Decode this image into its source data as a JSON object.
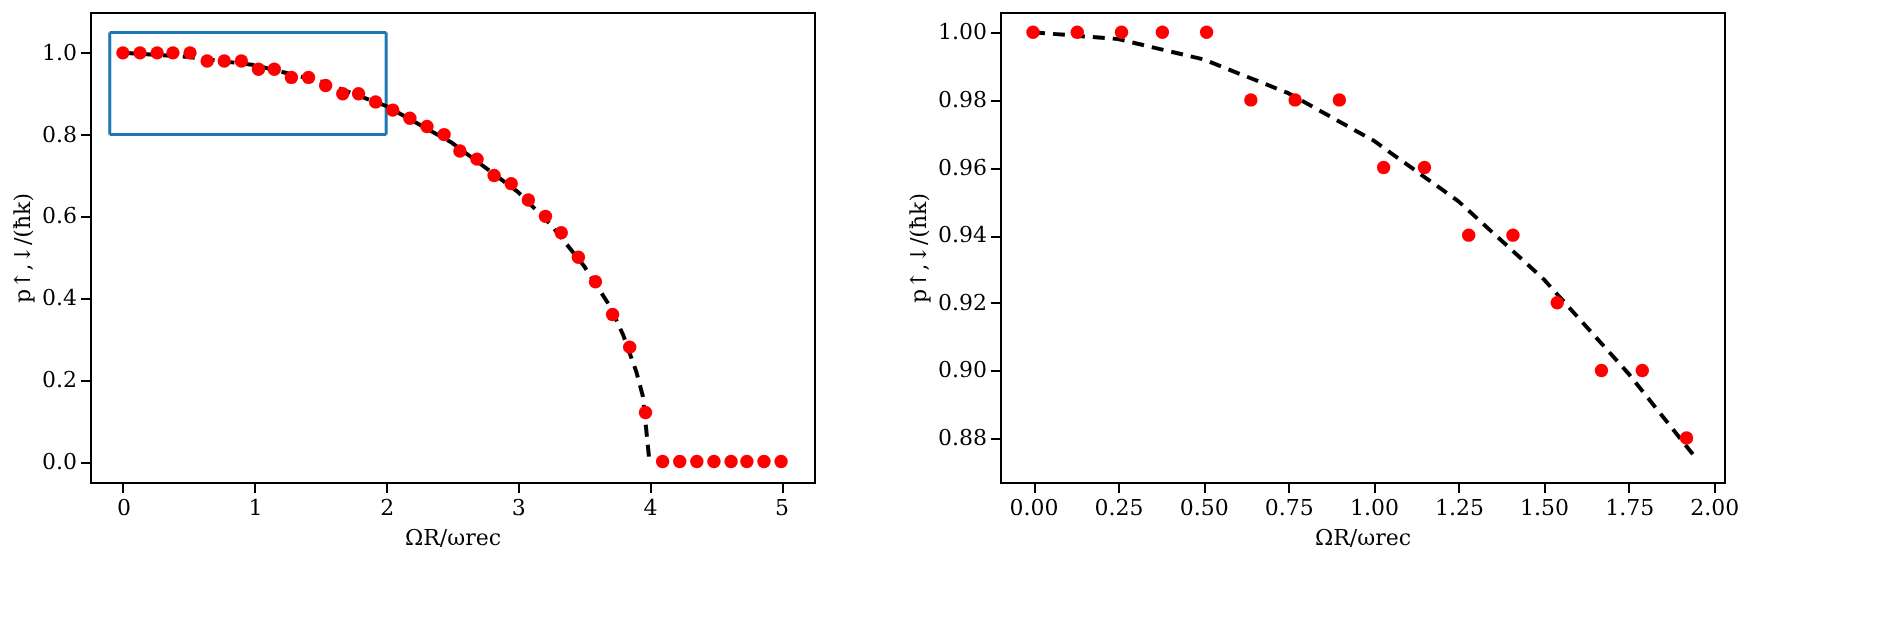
{
  "chart_data": [
    {
      "type": "scatter",
      "xlabel": "ΩR/ωrec",
      "ylabel": "p↑,↓/(ħk)",
      "grid": false,
      "xlim": [
        -0.25,
        5.25
      ],
      "ylim": [
        -0.05,
        1.1
      ],
      "xticks": [
        0,
        1,
        2,
        3,
        4,
        5
      ],
      "yticks": [
        {
          "value": 0,
          "label": "0.0"
        },
        {
          "value": 0.2,
          "label": "0.2"
        },
        {
          "value": 0.4,
          "label": "0.4"
        },
        {
          "value": 0.6,
          "label": "0.6"
        },
        {
          "value": 0.8,
          "label": "0.8"
        },
        {
          "value": 1,
          "label": "1.0"
        }
      ],
      "series": [
        {
          "type": "line",
          "color": "#1f77b4",
          "line_style": "solid",
          "marker": "none",
          "x": [
            -0.1,
            2
          ],
          "values": [
            0.8,
            0.8
          ]
        },
        {
          "type": "line",
          "color": "#1f77b4",
          "line_style": "solid",
          "marker": "none",
          "x": [
            -0.1,
            2
          ],
          "values": [
            1.05,
            1.05
          ]
        },
        {
          "type": "line",
          "color": "#1f77b4",
          "line_style": "solid",
          "marker": "none",
          "x": [
            -0.1,
            -0.1
          ],
          "values": [
            0.8,
            1.05
          ]
        },
        {
          "type": "line",
          "color": "#1f77b4",
          "line_style": "solid",
          "marker": "none",
          "x": [
            2,
            2
          ],
          "values": [
            0.8,
            1.05
          ]
        },
        {
          "type": "line",
          "color": "#000000",
          "line_style": "dashed",
          "marker": "none",
          "x": [
            0,
            0.5,
            1,
            1.5,
            2,
            2.5,
            3,
            3.25,
            3.5,
            3.7,
            3.8,
            3.9,
            3.95,
            4.0
          ],
          "values": [
            1,
            0.99,
            0.97,
            0.93,
            0.87,
            0.78,
            0.66,
            0.58,
            0.48,
            0.38,
            0.31,
            0.22,
            0.16,
            0
          ]
        },
        {
          "color": "#ff0000",
          "marker": "circle",
          "x": [
            0,
            0.13,
            0.26,
            0.38,
            0.51,
            0.64,
            0.77,
            0.9,
            1.03,
            1.15,
            1.28,
            1.41,
            1.54,
            1.67,
            1.79,
            1.92,
            2.05,
            2.18,
            2.31,
            2.44,
            2.56,
            2.69,
            2.82,
            2.95,
            3.08,
            3.21,
            3.33,
            3.46,
            3.59,
            3.72,
            3.85,
            3.97,
            4.1,
            4.23,
            4.36,
            4.49,
            4.62,
            4.74,
            4.87,
            5.0
          ],
          "values": [
            1,
            1,
            1,
            1,
            1,
            0.98,
            0.98,
            0.98,
            0.96,
            0.96,
            0.94,
            0.94,
            0.92,
            0.9,
            0.9,
            0.88,
            0.86,
            0.84,
            0.82,
            0.8,
            0.76,
            0.74,
            0.7,
            0.68,
            0.64,
            0.6,
            0.56,
            0.5,
            0.44,
            0.36,
            0.28,
            0.12,
            0,
            0,
            0,
            0,
            0,
            0,
            0,
            0
          ]
        }
      ]
    },
    {
      "type": "scatter",
      "xlabel": "ΩR/ωrec",
      "ylabel": "p↑,↓/(ħk)",
      "grid": false,
      "xlim": [
        -0.097,
        2.03
      ],
      "ylim": [
        0.867,
        1.006
      ],
      "xticks": [
        {
          "value": 0,
          "label": "0.00"
        },
        {
          "value": 0.25,
          "label": "0.25"
        },
        {
          "value": 0.5,
          "label": "0.50"
        },
        {
          "value": 0.75,
          "label": "0.75"
        },
        {
          "value": 1,
          "label": "1.00"
        },
        {
          "value": 1.25,
          "label": "1.25"
        },
        {
          "value": 1.5,
          "label": "1.50"
        },
        {
          "value": 1.75,
          "label": "1.75"
        },
        {
          "value": 2,
          "label": "2.00"
        }
      ],
      "yticks": [
        {
          "value": 0.88,
          "label": "0.88"
        },
        {
          "value": 0.9,
          "label": "0.90"
        },
        {
          "value": 0.92,
          "label": "0.92"
        },
        {
          "value": 0.94,
          "label": "0.94"
        },
        {
          "value": 0.96,
          "label": "0.96"
        },
        {
          "value": 0.98,
          "label": "0.98"
        },
        {
          "value": 1,
          "label": "1.00"
        }
      ],
      "series": [
        {
          "type": "line",
          "color": "#000000",
          "line_style": "dashed",
          "marker": "none",
          "x": [
            0,
            0.25,
            0.5,
            0.75,
            1,
            1.25,
            1.5,
            1.75,
            1.94
          ],
          "values": [
            1,
            0.998,
            0.992,
            0.982,
            0.968,
            0.95,
            0.927,
            0.899,
            0.875
          ]
        },
        {
          "color": "#ff0000",
          "marker": "circle",
          "x": [
            0,
            0.13,
            0.26,
            0.38,
            0.51,
            0.64,
            0.77,
            0.9,
            1.03,
            1.15,
            1.28,
            1.41,
            1.54,
            1.67,
            1.79,
            1.92
          ],
          "values": [
            1,
            1,
            1,
            1,
            1,
            0.98,
            0.98,
            0.98,
            0.96,
            0.96,
            0.94,
            0.94,
            0.92,
            0.9,
            0.9,
            0.88
          ]
        }
      ]
    }
  ]
}
